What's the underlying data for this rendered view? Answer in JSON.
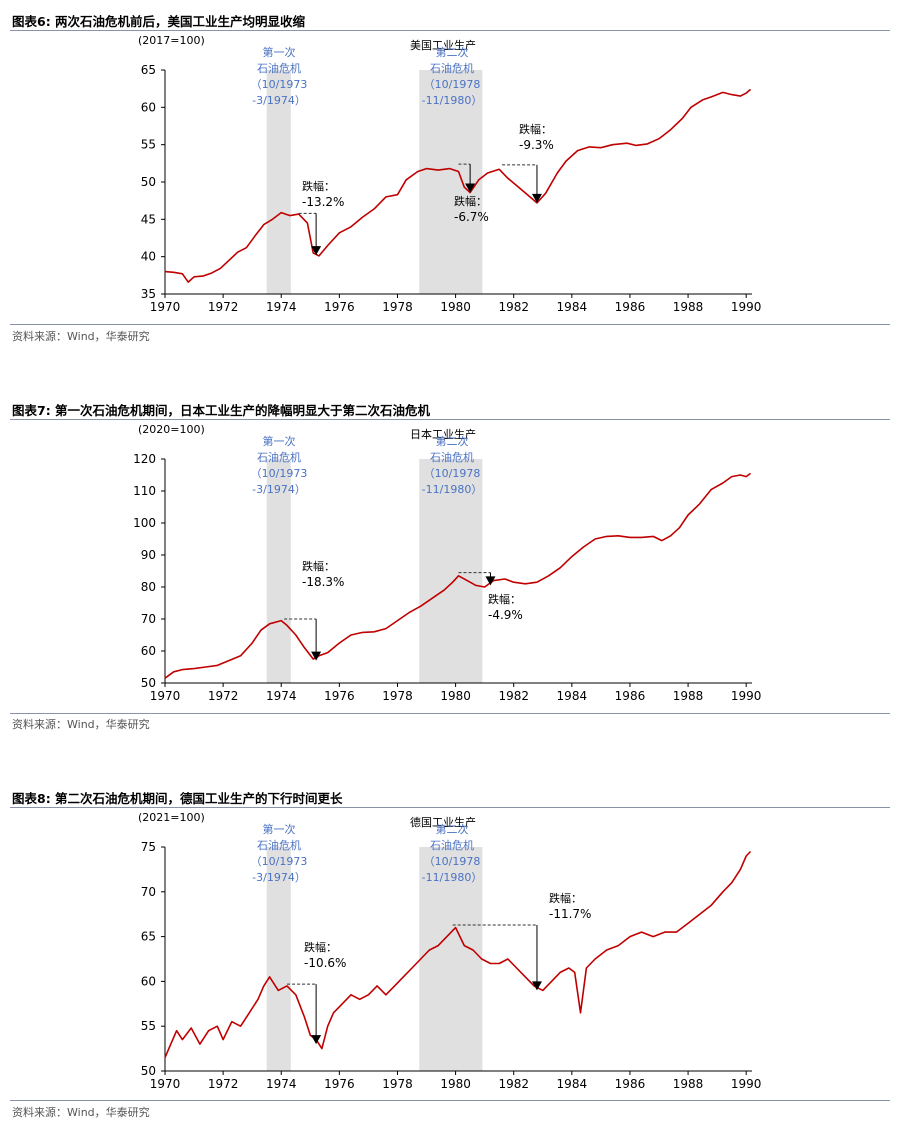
{
  "colors": {
    "series": "#c00000",
    "shade": "#e0e0e0",
    "label_blue": "#4a72c4",
    "rule": "#8a94a8"
  },
  "sections": [
    {
      "figure_title": "图表6:   两次石油危机前后，美国工业生产均明显收缩",
      "source": "资料来源：Wind，华泰研究"
    },
    {
      "figure_title": "图表7:   第一次石油危机期间，日本工业生产的降幅明显大于第二次石油危机",
      "source": "资料来源：Wind，华泰研究"
    },
    {
      "figure_title": "图表8:   第二次石油危机期间，德国工业生产的下行时间更长",
      "source": "资料来源：Wind，华泰研究"
    }
  ],
  "chart_data": [
    {
      "type": "line",
      "title": "美国工业生产",
      "unit_label": "(2017=100)",
      "xlim": [
        1970,
        1990.2
      ],
      "x_ticks": [
        1970,
        1972,
        1974,
        1976,
        1978,
        1980,
        1982,
        1984,
        1986,
        1988,
        1990
      ],
      "ylim": [
        35,
        65
      ],
      "y_ticks": [
        35,
        40,
        45,
        50,
        55,
        60,
        65
      ],
      "shaded_periods": [
        [
          1973.5,
          1974.33
        ],
        [
          1978.75,
          1980.92
        ]
      ],
      "crisis_labels": [
        [
          "第一次",
          "石油危机",
          "（10/1973",
          "-3/1974）"
        ],
        [
          "第二次",
          "石油危机",
          "（10/1978",
          "-11/1980）"
        ]
      ],
      "annotations": [
        {
          "title": "跌幅：",
          "value": "-13.2%",
          "from": [
            1974.6,
            45.8
          ],
          "to": [
            1975.2,
            40.2
          ]
        },
        {
          "title": "跌幅：",
          "value": "-6.7%",
          "from": [
            1980.1,
            52.4
          ],
          "to": [
            1980.5,
            48.6
          ]
        },
        {
          "title": "跌幅：",
          "value": "-9.3%",
          "from": [
            1981.6,
            52.3
          ],
          "to": [
            1982.8,
            47.2
          ]
        }
      ],
      "series": [
        {
          "points": [
            [
              1970.0,
              38.0
            ],
            [
              1970.3,
              37.9
            ],
            [
              1970.6,
              37.7
            ],
            [
              1970.8,
              36.6
            ],
            [
              1971.0,
              37.3
            ],
            [
              1971.3,
              37.4
            ],
            [
              1971.6,
              37.8
            ],
            [
              1971.9,
              38.4
            ],
            [
              1972.2,
              39.5
            ],
            [
              1972.5,
              40.6
            ],
            [
              1972.8,
              41.2
            ],
            [
              1973.1,
              42.8
            ],
            [
              1973.4,
              44.3
            ],
            [
              1973.7,
              45.0
            ],
            [
              1974.0,
              45.9
            ],
            [
              1974.3,
              45.5
            ],
            [
              1974.6,
              45.7
            ],
            [
              1974.9,
              44.5
            ],
            [
              1975.1,
              40.5
            ],
            [
              1975.3,
              40.1
            ],
            [
              1975.6,
              41.5
            ],
            [
              1976.0,
              43.2
            ],
            [
              1976.4,
              44.0
            ],
            [
              1976.8,
              45.3
            ],
            [
              1977.2,
              46.4
            ],
            [
              1977.6,
              48.0
            ],
            [
              1978.0,
              48.3
            ],
            [
              1978.3,
              50.3
            ],
            [
              1978.7,
              51.4
            ],
            [
              1979.0,
              51.8
            ],
            [
              1979.4,
              51.6
            ],
            [
              1979.8,
              51.8
            ],
            [
              1980.1,
              51.4
            ],
            [
              1980.3,
              49.3
            ],
            [
              1980.5,
              48.6
            ],
            [
              1980.8,
              50.3
            ],
            [
              1981.1,
              51.2
            ],
            [
              1981.5,
              51.7
            ],
            [
              1981.8,
              50.5
            ],
            [
              1982.2,
              49.2
            ],
            [
              1982.5,
              48.2
            ],
            [
              1982.8,
              47.2
            ],
            [
              1983.1,
              48.5
            ],
            [
              1983.5,
              51.2
            ],
            [
              1983.8,
              52.8
            ],
            [
              1984.2,
              54.2
            ],
            [
              1984.6,
              54.7
            ],
            [
              1985.0,
              54.6
            ],
            [
              1985.4,
              55.0
            ],
            [
              1985.9,
              55.2
            ],
            [
              1986.2,
              54.9
            ],
            [
              1986.6,
              55.1
            ],
            [
              1987.0,
              55.8
            ],
            [
              1987.4,
              57.0
            ],
            [
              1987.8,
              58.5
            ],
            [
              1988.1,
              60.0
            ],
            [
              1988.5,
              61.0
            ],
            [
              1988.8,
              61.4
            ],
            [
              1989.2,
              62.0
            ],
            [
              1989.5,
              61.7
            ],
            [
              1989.8,
              61.5
            ],
            [
              1990.0,
              61.9
            ],
            [
              1990.15,
              62.4
            ]
          ]
        }
      ]
    },
    {
      "type": "line",
      "title": "日本工业生产",
      "unit_label": "(2020=100)",
      "xlim": [
        1970,
        1990.2
      ],
      "x_ticks": [
        1970,
        1972,
        1974,
        1976,
        1978,
        1980,
        1982,
        1984,
        1986,
        1988,
        1990
      ],
      "ylim": [
        50,
        120
      ],
      "y_ticks": [
        50,
        60,
        70,
        80,
        90,
        100,
        110,
        120
      ],
      "shaded_periods": [
        [
          1973.5,
          1974.33
        ],
        [
          1978.75,
          1980.92
        ]
      ],
      "crisis_labels": [
        [
          "第一次",
          "石油危机",
          "（10/1973",
          "-3/1974）"
        ],
        [
          "第二次",
          "石油危机",
          "（10/1978",
          "-11/1980）"
        ]
      ],
      "annotations": [
        {
          "title": "跌幅：",
          "value": "-18.3%",
          "from": [
            1974.1,
            70.0
          ],
          "to": [
            1975.2,
            57.0
          ]
        },
        {
          "title": "跌幅：",
          "value": "-4.9%",
          "from": [
            1980.1,
            84.5
          ],
          "to": [
            1981.2,
            80.5
          ]
        }
      ],
      "series": [
        {
          "points": [
            [
              1970.0,
              51.5
            ],
            [
              1970.3,
              53.5
            ],
            [
              1970.6,
              54.2
            ],
            [
              1971.0,
              54.5
            ],
            [
              1971.4,
              55.0
            ],
            [
              1971.8,
              55.5
            ],
            [
              1972.2,
              57.0
            ],
            [
              1972.6,
              58.5
            ],
            [
              1973.0,
              62.5
            ],
            [
              1973.3,
              66.5
            ],
            [
              1973.6,
              68.5
            ],
            [
              1974.0,
              69.5
            ],
            [
              1974.2,
              68.0
            ],
            [
              1974.5,
              65.0
            ],
            [
              1974.8,
              61.0
            ],
            [
              1975.1,
              57.5
            ],
            [
              1975.3,
              58.5
            ],
            [
              1975.6,
              59.5
            ],
            [
              1976.0,
              62.5
            ],
            [
              1976.4,
              65.0
            ],
            [
              1976.8,
              65.8
            ],
            [
              1977.2,
              66.0
            ],
            [
              1977.6,
              67.0
            ],
            [
              1978.0,
              69.5
            ],
            [
              1978.4,
              72.0
            ],
            [
              1978.8,
              74.0
            ],
            [
              1979.2,
              76.5
            ],
            [
              1979.6,
              79.0
            ],
            [
              1979.9,
              81.5
            ],
            [
              1980.1,
              83.5
            ],
            [
              1980.4,
              82.0
            ],
            [
              1980.7,
              80.5
            ],
            [
              1981.0,
              80.0
            ],
            [
              1981.3,
              82.0
            ],
            [
              1981.7,
              82.5
            ],
            [
              1982.0,
              81.5
            ],
            [
              1982.4,
              81.0
            ],
            [
              1982.8,
              81.5
            ],
            [
              1983.2,
              83.5
            ],
            [
              1983.6,
              86.0
            ],
            [
              1984.0,
              89.5
            ],
            [
              1984.4,
              92.5
            ],
            [
              1984.8,
              95.0
            ],
            [
              1985.2,
              95.8
            ],
            [
              1985.6,
              96.0
            ],
            [
              1986.0,
              95.5
            ],
            [
              1986.4,
              95.5
            ],
            [
              1986.8,
              95.8
            ],
            [
              1987.1,
              94.5
            ],
            [
              1987.4,
              96.0
            ],
            [
              1987.7,
              98.5
            ],
            [
              1988.0,
              102.5
            ],
            [
              1988.4,
              106.0
            ],
            [
              1988.8,
              110.5
            ],
            [
              1989.2,
              112.5
            ],
            [
              1989.5,
              114.5
            ],
            [
              1989.8,
              115.0
            ],
            [
              1990.0,
              114.5
            ],
            [
              1990.15,
              115.5
            ]
          ]
        }
      ]
    },
    {
      "type": "line",
      "title": "德国工业生产",
      "unit_label": "(2021=100)",
      "xlim": [
        1970,
        1990.2
      ],
      "x_ticks": [
        1970,
        1972,
        1974,
        1976,
        1978,
        1980,
        1982,
        1984,
        1986,
        1988,
        1990
      ],
      "ylim": [
        50,
        75
      ],
      "y_ticks": [
        50,
        55,
        60,
        65,
        70,
        75
      ],
      "shaded_periods": [
        [
          1973.5,
          1974.33
        ],
        [
          1978.75,
          1980.92
        ]
      ],
      "crisis_labels": [
        [
          "第一次",
          "石油危机",
          "（10/1973",
          "-3/1974）"
        ],
        [
          "第二次",
          "石油危机",
          "（10/1978",
          "-11/1980）"
        ]
      ],
      "annotations": [
        {
          "title": "跌幅：",
          "value": "-10.6%",
          "from": [
            1974.2,
            59.7
          ],
          "to": [
            1975.2,
            53.0
          ]
        },
        {
          "title": "跌幅：",
          "value": "-11.7%",
          "from": [
            1979.9,
            66.3
          ],
          "to": [
            1982.8,
            59.0
          ]
        }
      ],
      "series": [
        {
          "points": [
            [
              1970.0,
              51.5
            ],
            [
              1970.2,
              53.0
            ],
            [
              1970.4,
              54.5
            ],
            [
              1970.6,
              53.5
            ],
            [
              1970.9,
              54.8
            ],
            [
              1971.2,
              53.0
            ],
            [
              1971.5,
              54.5
            ],
            [
              1971.8,
              55.0
            ],
            [
              1972.0,
              53.5
            ],
            [
              1972.3,
              55.5
            ],
            [
              1972.6,
              55.0
            ],
            [
              1972.9,
              56.5
            ],
            [
              1973.2,
              58.0
            ],
            [
              1973.4,
              59.5
            ],
            [
              1973.6,
              60.5
            ],
            [
              1973.9,
              59.0
            ],
            [
              1974.2,
              59.5
            ],
            [
              1974.5,
              58.5
            ],
            [
              1974.8,
              56.0
            ],
            [
              1975.0,
              54.0
            ],
            [
              1975.2,
              53.5
            ],
            [
              1975.4,
              52.5
            ],
            [
              1975.6,
              55.0
            ],
            [
              1975.8,
              56.5
            ],
            [
              1976.1,
              57.5
            ],
            [
              1976.4,
              58.5
            ],
            [
              1976.7,
              58.0
            ],
            [
              1977.0,
              58.5
            ],
            [
              1977.3,
              59.5
            ],
            [
              1977.6,
              58.5
            ],
            [
              1977.9,
              59.5
            ],
            [
              1978.2,
              60.5
            ],
            [
              1978.5,
              61.5
            ],
            [
              1978.8,
              62.5
            ],
            [
              1979.1,
              63.5
            ],
            [
              1979.4,
              64.0
            ],
            [
              1979.7,
              65.0
            ],
            [
              1980.0,
              66.0
            ],
            [
              1980.3,
              64.0
            ],
            [
              1980.6,
              63.5
            ],
            [
              1980.9,
              62.5
            ],
            [
              1981.2,
              62.0
            ],
            [
              1981.5,
              62.0
            ],
            [
              1981.8,
              62.5
            ],
            [
              1982.1,
              61.5
            ],
            [
              1982.4,
              60.5
            ],
            [
              1982.7,
              59.5
            ],
            [
              1983.0,
              59.0
            ],
            [
              1983.3,
              60.0
            ],
            [
              1983.6,
              61.0
            ],
            [
              1983.9,
              61.5
            ],
            [
              1984.1,
              61.0
            ],
            [
              1984.3,
              56.5
            ],
            [
              1984.5,
              61.5
            ],
            [
              1984.8,
              62.5
            ],
            [
              1985.2,
              63.5
            ],
            [
              1985.6,
              64.0
            ],
            [
              1986.0,
              65.0
            ],
            [
              1986.4,
              65.5
            ],
            [
              1986.8,
              65.0
            ],
            [
              1987.2,
              65.5
            ],
            [
              1987.6,
              65.5
            ],
            [
              1988.0,
              66.5
            ],
            [
              1988.4,
              67.5
            ],
            [
              1988.8,
              68.5
            ],
            [
              1989.2,
              70.0
            ],
            [
              1989.5,
              71.0
            ],
            [
              1989.8,
              72.5
            ],
            [
              1990.0,
              74.0
            ],
            [
              1990.15,
              74.5
            ]
          ]
        }
      ]
    }
  ]
}
